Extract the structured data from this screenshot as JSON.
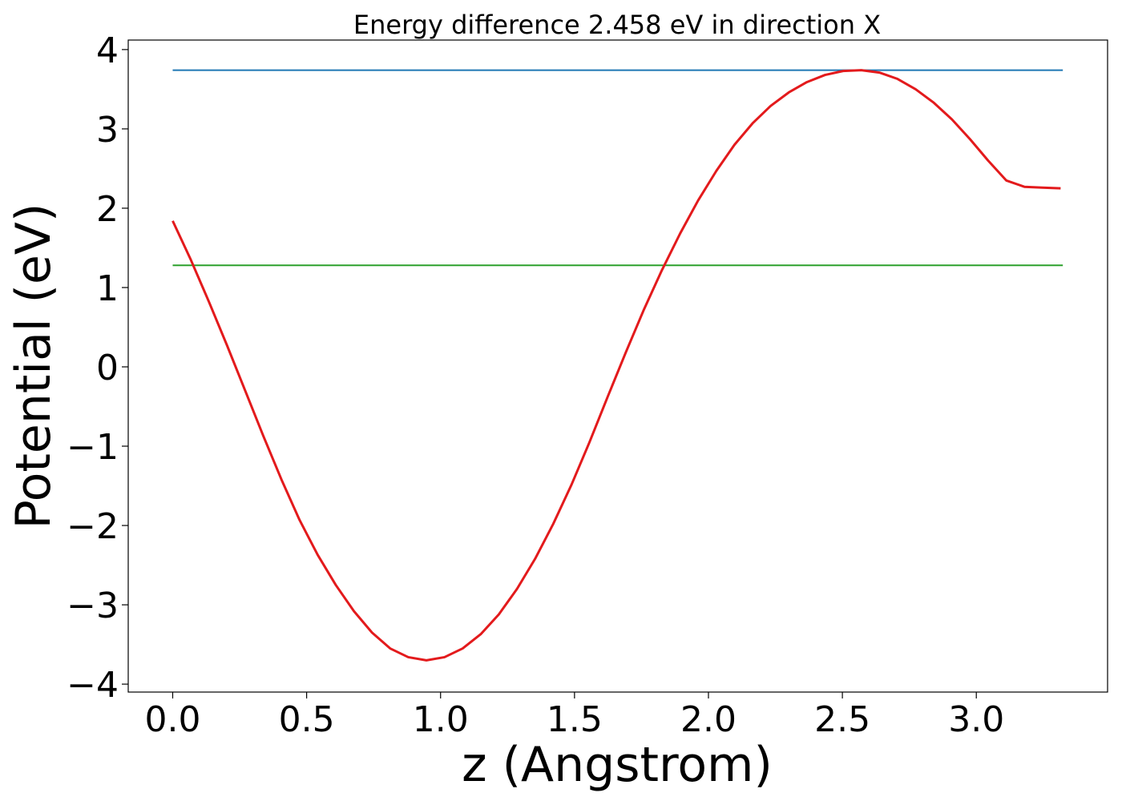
{
  "chart_data": {
    "type": "line",
    "title": "Energy difference 2.458 eV in direction X",
    "xlabel": "z (Angstrom)",
    "ylabel": "Potential (eV)",
    "xlim": [
      -0.166,
      3.49
    ],
    "ylim": [
      -4.1,
      4.12
    ],
    "xticks": [
      0.0,
      0.5,
      1.0,
      1.5,
      2.0,
      2.5,
      3.0
    ],
    "xtick_labels": [
      "0.0",
      "0.5",
      "1.0",
      "1.5",
      "2.0",
      "2.5",
      "3.0"
    ],
    "yticks": [
      -4,
      -3,
      -2,
      -1,
      0,
      1,
      2,
      3,
      4
    ],
    "ytick_labels": [
      "−4",
      "−3",
      "−2",
      "−1",
      "0",
      "1",
      "2",
      "3",
      "4"
    ],
    "grid": false,
    "series": [
      {
        "color": "#1f77b4",
        "x": [
          0.0,
          3.323
        ],
        "y": [
          3.74,
          3.74
        ]
      },
      {
        "color": "#2ca02c",
        "x": [
          0.0,
          3.323
        ],
        "y": [
          1.28,
          1.28
        ]
      },
      {
        "color": "#e31a1c",
        "x": [
          0.0,
          0.0676,
          0.1353,
          0.2029,
          0.2706,
          0.3382,
          0.4059,
          0.4735,
          0.5412,
          0.6088,
          0.6765,
          0.7441,
          0.8118,
          0.8794,
          0.9471,
          1.0147,
          1.0824,
          1.15,
          1.2176,
          1.2853,
          1.3529,
          1.4206,
          1.4882,
          1.5559,
          1.6235,
          1.6912,
          1.7588,
          1.8265,
          1.8941,
          1.9618,
          2.0294,
          2.0971,
          2.1647,
          2.2324,
          2.3,
          2.3676,
          2.4353,
          2.5029,
          2.5706,
          2.6382,
          2.7059,
          2.7735,
          2.8412,
          2.9088,
          2.9765,
          3.0441,
          3.1118,
          3.1794,
          3.2471,
          3.3147
        ],
        "y": [
          1.84,
          1.35,
          0.82,
          0.27,
          -0.3,
          -0.87,
          -1.42,
          -1.93,
          -2.37,
          -2.75,
          -3.08,
          -3.35,
          -3.55,
          -3.66,
          -3.7,
          -3.66,
          -3.55,
          -3.37,
          -3.12,
          -2.8,
          -2.42,
          -1.98,
          -1.49,
          -0.95,
          -0.38,
          0.18,
          0.72,
          1.22,
          1.68,
          2.1,
          2.47,
          2.8,
          3.07,
          3.29,
          3.46,
          3.59,
          3.68,
          3.73,
          3.74,
          3.71,
          3.63,
          3.5,
          3.33,
          3.12,
          2.87,
          2.6,
          2.35,
          2.27,
          2.26,
          2.25
        ]
      }
    ]
  }
}
